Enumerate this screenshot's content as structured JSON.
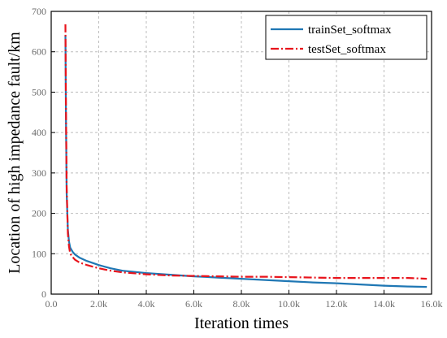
{
  "chart_data": {
    "type": "line",
    "title": "",
    "xlabel": "Iteration times",
    "ylabel": "Location of high impedance fault/km",
    "xlim": [
      0,
      16000
    ],
    "ylim": [
      0,
      700
    ],
    "xticks": [
      0,
      2000,
      4000,
      6000,
      8000,
      10000,
      12000,
      14000,
      16000
    ],
    "xtick_labels": [
      "0.0",
      "2.0k",
      "4.0k",
      "6.0k",
      "8.0k",
      "10.0k",
      "12.0k",
      "14.0k",
      "16.0k"
    ],
    "yticks": [
      0,
      100,
      200,
      300,
      400,
      500,
      600,
      700
    ],
    "ytick_labels": [
      "0",
      "100",
      "200",
      "300",
      "400",
      "500",
      "600",
      "700"
    ],
    "grid": true,
    "legend_position": "top-right",
    "series": [
      {
        "name": "trainSet_softmax",
        "color": "#1f77b4",
        "style": "solid",
        "x": [
          600,
          620,
          650,
          700,
          750,
          800,
          900,
          1000,
          1200,
          1500,
          2000,
          2500,
          3000,
          4000,
          5000,
          6000,
          7000,
          8000,
          9000,
          10000,
          11000,
          12000,
          13000,
          14000,
          15000,
          15800
        ],
        "y": [
          640,
          450,
          250,
          160,
          130,
          115,
          105,
          98,
          90,
          82,
          72,
          64,
          58,
          52,
          48,
          44,
          41,
          38,
          35,
          32,
          29,
          27,
          24,
          21,
          19,
          18
        ]
      },
      {
        "name": "testSet_softmax",
        "color": "#e8141c",
        "style": "dashdot",
        "x": [
          600,
          620,
          650,
          700,
          750,
          800,
          900,
          1000,
          1200,
          1500,
          2000,
          2500,
          3000,
          4000,
          5000,
          6000,
          7000,
          8000,
          9000,
          10000,
          11000,
          12000,
          13000,
          14000,
          15000,
          15800
        ],
        "y": [
          668,
          480,
          270,
          150,
          118,
          100,
          92,
          85,
          78,
          72,
          64,
          58,
          54,
          49,
          46,
          45,
          44,
          43,
          43,
          42,
          41,
          40,
          40,
          40,
          40,
          38
        ]
      }
    ]
  }
}
